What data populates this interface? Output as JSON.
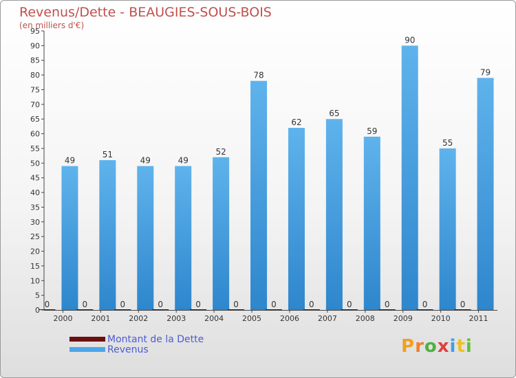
{
  "chart_data": {
    "type": "bar",
    "title": "Revenus/Dette - BEAUGIES-SOUS-BOIS",
    "subtitle": "(en milliers d'€)",
    "categories": [
      "2000",
      "2001",
      "2002",
      "2003",
      "2004",
      "2005",
      "2006",
      "2007",
      "2008",
      "2009",
      "2010",
      "2011"
    ],
    "series": [
      {
        "name": "Montant de la Dette",
        "color": "#6b0f0f",
        "values": [
          0,
          0,
          0,
          0,
          0,
          0,
          0,
          0,
          0,
          0,
          0,
          0
        ]
      },
      {
        "name": "Revenus",
        "color": "#4da6e8",
        "values": [
          49,
          51,
          49,
          49,
          52,
          78,
          62,
          65,
          59,
          90,
          55,
          79
        ]
      }
    ],
    "ylim": [
      0,
      95
    ],
    "ytick_step": 5,
    "grid": false,
    "legend_position": "bottom-left"
  },
  "logo": {
    "text": "Proxiti",
    "colors": [
      "#f0a020",
      "#f08030",
      "#50b040",
      "#e04040",
      "#40a0e0",
      "#f0c020",
      "#60c040"
    ]
  }
}
